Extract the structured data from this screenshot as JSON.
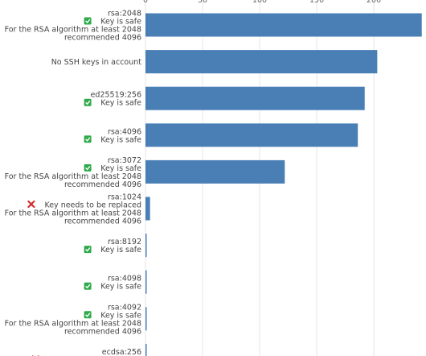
{
  "chart_data": {
    "type": "bar",
    "orientation": "horizontal",
    "title": "",
    "xlabel": "",
    "ylabel": "",
    "xlim": [
      0,
      245
    ],
    "x_ticks": [
      0,
      50,
      100,
      150,
      200
    ],
    "x_tick_labels": [
      "0",
      "50",
      "100",
      "150",
      "200"
    ],
    "grid": true,
    "bar_color": "#4a7fb6",
    "categories": [
      {
        "lines": [
          {
            "text": "rsa:2048"
          },
          {
            "icon": "check",
            "text": "Key is safe"
          },
          {
            "text": "For the RSA algorithm at least 2048"
          },
          {
            "text": "recommended 4096"
          }
        ]
      },
      {
        "lines": [
          {
            "text": "No SSH keys in account"
          }
        ]
      },
      {
        "lines": [
          {
            "text": "ed25519:256"
          },
          {
            "icon": "check",
            "text": "Key is safe"
          }
        ]
      },
      {
        "lines": [
          {
            "text": "rsa:4096"
          },
          {
            "icon": "check",
            "text": "Key is safe"
          }
        ]
      },
      {
        "lines": [
          {
            "text": "rsa:3072"
          },
          {
            "icon": "check",
            "text": "Key is safe"
          },
          {
            "text": "For the RSA algorithm at least 2048"
          },
          {
            "text": "recommended 4096"
          }
        ]
      },
      {
        "lines": [
          {
            "text": "rsa:1024"
          },
          {
            "icon": "cross",
            "text": "Key needs to be replaced"
          },
          {
            "text": "For the RSA algorithm at least 2048"
          },
          {
            "text": "recommended 4096"
          }
        ]
      },
      {
        "lines": [
          {
            "text": "rsa:8192"
          },
          {
            "icon": "check",
            "text": "Key is safe"
          }
        ]
      },
      {
        "lines": [
          {
            "text": "rsa:4098"
          },
          {
            "icon": "check",
            "text": "Key is safe"
          }
        ]
      },
      {
        "lines": [
          {
            "text": "rsa:4092"
          },
          {
            "icon": "check",
            "text": "Key is safe"
          },
          {
            "text": "For the RSA algorithm at least 2048"
          },
          {
            "text": "recommended 4096"
          }
        ]
      },
      {
        "lines": [
          {
            "text": "ecdsa:256"
          },
          {
            "icon": "cross",
            "text": "For the ECDSA algorithm"
          }
        ]
      }
    ],
    "values": [
      242,
      203,
      192,
      186,
      122,
      4,
      1,
      1,
      1,
      1
    ]
  }
}
